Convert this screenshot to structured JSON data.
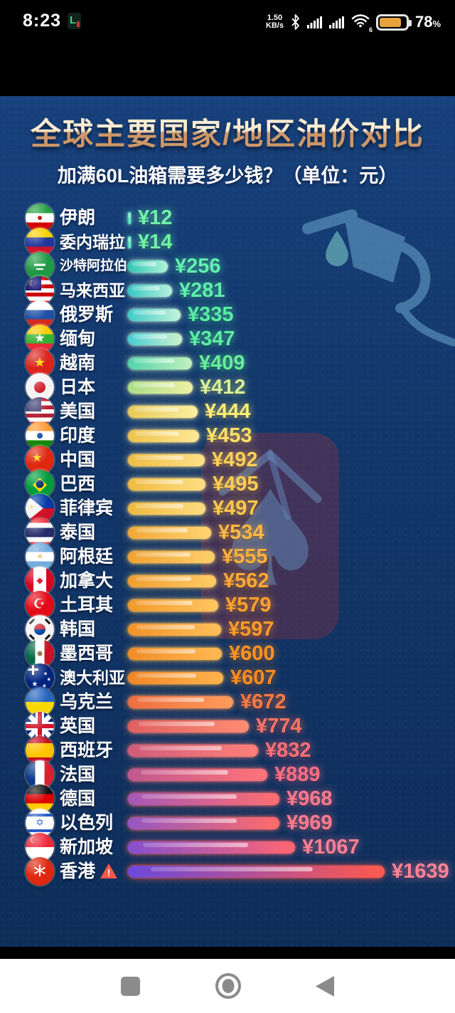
{
  "status_bar": {
    "time": "8:23",
    "app_badge": "L",
    "net_speed": "1.50",
    "net_unit": "KB/s",
    "wifi_label": "6",
    "battery_percent": "78",
    "percent_sign": "%",
    "battery_level": 0.78,
    "battery_fill_color": "#e8a33c"
  },
  "header": {
    "title": "全球主要国家/地区油价对比",
    "subtitle": "加满60L油箱需要多少钱？（单位：元）"
  },
  "chart_data": {
    "type": "bar",
    "orientation": "horizontal",
    "title": "全球主要国家/地区油价对比",
    "subtitle": "加满60L油箱需要多少钱？（单位：元）",
    "unit": "元",
    "value_prefix": "¥",
    "x_range": [
      0,
      1700
    ],
    "legend": "none",
    "grid": "off",
    "categories": [
      "伊朗",
      "委内瑞拉",
      "沙特阿拉伯",
      "马来西亚",
      "俄罗斯",
      "缅甸",
      "越南",
      "日本",
      "美国",
      "印度",
      "中国",
      "巴西",
      "菲律宾",
      "泰国",
      "阿根廷",
      "加拿大",
      "土耳其",
      "韩国",
      "墨西哥",
      "澳大利亚",
      "乌克兰",
      "英国",
      "西班牙",
      "法国",
      "德国",
      "以色列",
      "新加坡",
      "香港"
    ],
    "values": [
      12,
      14,
      256,
      281,
      335,
      347,
      409,
      412,
      444,
      453,
      492,
      495,
      497,
      534,
      555,
      562,
      579,
      597,
      600,
      607,
      672,
      774,
      832,
      889,
      968,
      969,
      1067,
      1639
    ],
    "rows": [
      {
        "name": "伊朗",
        "value": 12,
        "label": "¥12",
        "value_color": "#72f2aa",
        "bar": [
          "#3ad0b8",
          "#8af0d0"
        ],
        "flag": {
          "k": "h",
          "s": [
            [
              "#239f40",
              1
            ],
            [
              "#ffffff",
              1
            ],
            [
              "#d40000",
              1
            ]
          ],
          "e": [
            {
              "t": "dot",
              "col": "#c00000",
              "s": 6,
              "x": 50,
              "y": 50
            }
          ]
        }
      },
      {
        "name": "委内瑞拉",
        "value": 14,
        "label": "¥14",
        "value_color": "#70f2a8",
        "bar": [
          "#3ad0b8",
          "#8af0d0"
        ],
        "flag": {
          "k": "h",
          "s": [
            [
              "#f8d000",
              1
            ],
            [
              "#20379c",
              1
            ],
            [
              "#cf142b",
              1
            ]
          ]
        }
      },
      {
        "name": "沙特阿拉伯",
        "value": 256,
        "label": "¥256",
        "value_color": "#62f0b2",
        "bar": [
          "#2fc4b4",
          "#b2f4d8"
        ],
        "flag": {
          "k": "h",
          "s": [
            [
              "#1f9a44",
              1
            ]
          ],
          "e": [
            {
              "t": "bar",
              "col": "#ffffff",
              "w": 16,
              "h": 3,
              "x": 50,
              "y": 44
            },
            {
              "t": "bar",
              "col": "#ffffff",
              "w": 10,
              "h": 2,
              "x": 50,
              "y": 60
            }
          ]
        }
      },
      {
        "name": "马来西亚",
        "value": 281,
        "label": "¥281",
        "value_color": "#5eefae",
        "bar": [
          "#36c8c2",
          "#b8f0dc"
        ],
        "flag": {
          "k": "h",
          "s": [
            [
              "#cc0001",
              1
            ],
            [
              "#ffffff",
              1
            ],
            [
              "#cc0001",
              1
            ],
            [
              "#ffffff",
              1
            ],
            [
              "#cc0001",
              1
            ],
            [
              "#ffffff",
              1
            ],
            [
              "#cc0001",
              1
            ]
          ],
          "canton": {
            "col": "#010066",
            "w": 55,
            "h": 50
          },
          "e": [
            {
              "t": "char",
              "c": "☾",
              "col": "#ffcc00",
              "s": 11,
              "x": 24,
              "y": 24
            }
          ]
        }
      },
      {
        "name": "俄罗斯",
        "value": 335,
        "label": "¥335",
        "value_color": "#58eea6",
        "bar": [
          "#3eccc8",
          "#c4f2d8"
        ],
        "flag": {
          "k": "h",
          "s": [
            [
              "#ffffff",
              1
            ],
            [
              "#2050a8",
              1
            ],
            [
              "#d52b1e",
              1
            ]
          ]
        }
      },
      {
        "name": "缅甸",
        "value": 347,
        "label": "¥347",
        "value_color": "#5ceea4",
        "bar": [
          "#46ccd4",
          "#ccf2cc"
        ],
        "flag": {
          "k": "h",
          "s": [
            [
              "#fecb00",
              1
            ],
            [
              "#34b233",
              1
            ],
            [
              "#ea2839",
              1
            ]
          ],
          "e": [
            {
              "t": "char",
              "c": "★",
              "col": "#ffffff",
              "s": 17,
              "x": 50,
              "y": 50
            }
          ]
        }
      },
      {
        "name": "越南",
        "value": 409,
        "label": "¥409",
        "value_color": "#66ef9c",
        "bar": [
          "#52d4ac",
          "#c2f0bc"
        ],
        "flag": {
          "k": "h",
          "s": [
            [
              "#da251d",
              1
            ]
          ],
          "e": [
            {
              "t": "char",
              "c": "★",
              "col": "#ffde00",
              "s": 18,
              "x": 50,
              "y": 50
            }
          ]
        }
      },
      {
        "name": "日本",
        "value": 412,
        "label": "¥412",
        "value_color": "#d8f096",
        "bar": [
          "#a8de88",
          "#eef0a6"
        ],
        "flag": {
          "k": "h",
          "s": [
            [
              "#f4f4f4",
              1
            ]
          ],
          "e": [
            {
              "t": "dot",
              "col": "#d01f2e",
              "s": 16,
              "x": 50,
              "y": 50
            }
          ]
        }
      },
      {
        "name": "美国",
        "value": 444,
        "label": "¥444",
        "value_color": "#ffee76",
        "bar": [
          "#e8c854",
          "#fcf0a2"
        ],
        "flag": {
          "k": "h",
          "s": [
            [
              "#b22234",
              1
            ],
            [
              "#ffffff",
              1
            ],
            [
              "#b22234",
              1
            ],
            [
              "#ffffff",
              1
            ],
            [
              "#b22234",
              1
            ],
            [
              "#ffffff",
              1
            ],
            [
              "#b22234",
              1
            ]
          ],
          "canton": {
            "col": "#3c3b6e",
            "w": 55,
            "h": 50
          }
        }
      },
      {
        "name": "印度",
        "value": 453,
        "label": "¥453",
        "value_color": "#ffe068",
        "bar": [
          "#ecc24c",
          "#ffe896"
        ],
        "flag": {
          "k": "h",
          "s": [
            [
              "#ff9933",
              1
            ],
            [
              "#ffffff",
              1
            ],
            [
              "#138808",
              1
            ]
          ],
          "e": [
            {
              "t": "dot",
              "col": "#1048a0",
              "s": 8,
              "x": 50,
              "y": 50
            }
          ]
        }
      },
      {
        "name": "中国",
        "value": 492,
        "label": "¥492",
        "value_color": "#ffd158",
        "bar": [
          "#eebc44",
          "#ffe188"
        ],
        "flag": {
          "k": "h",
          "s": [
            [
              "#de2910",
              1
            ]
          ],
          "e": [
            {
              "t": "char",
              "c": "★",
              "col": "#ffde00",
              "s": 16,
              "x": 40,
              "y": 42
            }
          ]
        }
      },
      {
        "name": "巴西",
        "value": 495,
        "label": "¥495",
        "value_color": "#ffcd52",
        "bar": [
          "#eeba42",
          "#ffdf84"
        ],
        "flag": {
          "k": "h",
          "s": [
            [
              "#009c3b",
              1
            ]
          ],
          "e": [
            {
              "t": "char",
              "c": "◆",
              "col": "#ffdf00",
              "s": 26,
              "x": 50,
              "y": 50
            },
            {
              "t": "dot",
              "col": "#002776",
              "s": 11,
              "x": 50,
              "y": 50
            }
          ]
        }
      },
      {
        "name": "菲律宾",
        "value": 497,
        "label": "¥497",
        "value_color": "#ffc94c",
        "bar": [
          "#eeb840",
          "#ffdd80"
        ],
        "flag": {
          "k": "ph"
        }
      },
      {
        "name": "泰国",
        "value": 534,
        "label": "¥534",
        "value_color": "#ffb844",
        "bar": [
          "#f0a836",
          "#ffd474"
        ],
        "flag": {
          "k": "h",
          "s": [
            [
              "#ef3340",
              1
            ],
            [
              "#ffffff",
              1
            ],
            [
              "#262a6a",
              2
            ],
            [
              "#ffffff",
              1
            ],
            [
              "#ef3340",
              1
            ]
          ]
        }
      },
      {
        "name": "阿根廷",
        "value": 555,
        "label": "¥555",
        "value_color": "#ffb03c",
        "bar": [
          "#f0a232",
          "#ffcf6c"
        ],
        "flag": {
          "k": "h",
          "s": [
            [
              "#74acdf",
              1
            ],
            [
              "#ffffff",
              1
            ],
            [
              "#74acdf",
              1
            ]
          ],
          "e": [
            {
              "t": "char",
              "c": "☀",
              "col": "#e8a820",
              "s": 11,
              "x": 50,
              "y": 50
            }
          ]
        }
      },
      {
        "name": "加拿大",
        "value": 562,
        "label": "¥562",
        "value_color": "#ffaa36",
        "bar": [
          "#f09e30",
          "#ffcb66"
        ],
        "flag": {
          "k": "v",
          "s": [
            [
              "#d80621",
              1
            ],
            [
              "#ffffff",
              1.6
            ],
            [
              "#d80621",
              1
            ]
          ],
          "e": [
            {
              "t": "char",
              "c": "◆",
              "col": "#d80621",
              "s": 12,
              "x": 50,
              "y": 48
            }
          ]
        }
      },
      {
        "name": "土耳其",
        "value": 579,
        "label": "¥579",
        "value_color": "#ffa230",
        "bar": [
          "#f0982c",
          "#ffc660"
        ],
        "flag": {
          "k": "h",
          "s": [
            [
              "#e30a17",
              1
            ]
          ],
          "e": [
            {
              "t": "char",
              "c": "☪",
              "col": "#ffffff",
              "s": 19,
              "x": 48,
              "y": 48
            }
          ]
        }
      },
      {
        "name": "韩国",
        "value": 597,
        "label": "¥597",
        "value_color": "#ff9c2a",
        "bar": [
          "#f0922a",
          "#ffc05a"
        ],
        "flag": {
          "k": "kr"
        }
      },
      {
        "name": "墨西哥",
        "value": 600,
        "label": "¥600",
        "value_color": "#ff9426",
        "bar": [
          "#f08c28",
          "#ffba54"
        ],
        "flag": {
          "k": "v",
          "s": [
            [
              "#006847",
              1
            ],
            [
              "#ffffff",
              1
            ],
            [
              "#ce1126",
              1
            ]
          ],
          "e": [
            {
              "t": "dot",
              "col": "#8a6a3a",
              "s": 7,
              "x": 50,
              "y": 50
            }
          ]
        }
      },
      {
        "name": "澳大利亚",
        "value": 607,
        "label": "¥607",
        "value_color": "#ff8c20",
        "bar": [
          "#f08626",
          "#ffb44e"
        ],
        "flag": {
          "k": "au"
        }
      },
      {
        "name": "乌克兰",
        "value": 672,
        "label": "¥672",
        "value_color": "#ff7a44",
        "bar": [
          "#ec6e3e",
          "#ff9c5c"
        ],
        "flag": {
          "k": "h",
          "s": [
            [
              "#2563be",
              1
            ],
            [
              "#f8d800",
              1
            ]
          ]
        }
      },
      {
        "name": "英国",
        "value": 774,
        "label": "¥774",
        "value_color": "#ff7468",
        "bar": [
          "#e06060",
          "#ff8c74"
        ],
        "flag": {
          "k": "uk"
        }
      },
      {
        "name": "西班牙",
        "value": 832,
        "label": "¥832",
        "value_color": "#ff7078",
        "bar": [
          "#d05c7c",
          "#ff8078"
        ],
        "flag": {
          "k": "h",
          "s": [
            [
              "#c60b1e",
              1
            ],
            [
              "#ffc400",
              2
            ],
            [
              "#c60b1e",
              1
            ]
          ]
        }
      },
      {
        "name": "法国",
        "value": 889,
        "label": "¥889",
        "value_color": "#ff6e84",
        "bar": [
          "#c05890",
          "#ff7478"
        ],
        "flag": {
          "k": "v",
          "s": [
            [
              "#0a3a8c",
              1
            ],
            [
              "#ffffff",
              1
            ],
            [
              "#da2030",
              1
            ]
          ]
        }
      },
      {
        "name": "德国",
        "value": 968,
        "label": "¥968",
        "value_color": "#ff7a8e",
        "bar": [
          "#a458b8",
          "#ff6e70"
        ],
        "flag": {
          "k": "h",
          "s": [
            [
              "#141414",
              1
            ],
            [
              "#dd0000",
              1
            ],
            [
              "#ffcc00",
              1
            ]
          ]
        }
      },
      {
        "name": "以色列",
        "value": 969,
        "label": "¥969",
        "value_color": "#ff7c90",
        "bar": [
          "#9456c4",
          "#ff6c68"
        ],
        "flag": {
          "k": "h",
          "s": [
            [
              "#ffffff",
              1
            ],
            [
              "#2458c8",
              0.6
            ],
            [
              "#ffffff",
              2.6
            ],
            [
              "#2458c8",
              0.6
            ],
            [
              "#ffffff",
              1
            ]
          ],
          "e": [
            {
              "t": "char",
              "c": "✡",
              "col": "#2458c8",
              "s": 14,
              "x": 50,
              "y": 50
            }
          ]
        }
      },
      {
        "name": "新加坡",
        "value": 1067,
        "label": "¥1067",
        "value_color": "#ff8096",
        "bar": [
          "#8450d0",
          "#ff6670"
        ],
        "flag": {
          "k": "h",
          "s": [
            [
              "#ed2939",
              1
            ],
            [
              "#ffffff",
              1
            ]
          ],
          "e": [
            {
              "t": "char",
              "c": "☾",
              "col": "#ffffff",
              "s": 12,
              "x": 28,
              "y": 24
            }
          ]
        }
      },
      {
        "name": "香港",
        "value": 1639,
        "label": "¥1639",
        "value_color": "#ff8498",
        "bar": [
          "#6c48dc",
          "#ff5a4c"
        ],
        "flag": {
          "k": "h",
          "s": [
            [
              "#de2910",
              1
            ]
          ],
          "e": [
            {
              "t": "char",
              "c": "*",
              "col": "#ffffff",
              "s": 36,
              "x": 50,
              "y": 66
            }
          ]
        },
        "warning": true
      }
    ]
  },
  "watermark": {
    "shape": "spade-logo",
    "panel_color": "rgba(150,48,64,0.36)",
    "spade_glyph": "♠"
  },
  "nav_bar": {
    "icons": [
      "recents",
      "home",
      "back"
    ]
  },
  "colors": {
    "background": "#123768",
    "title_top": "#f9ecd2",
    "title_bottom": "#cd9768",
    "subtitle": "#ffffff"
  }
}
